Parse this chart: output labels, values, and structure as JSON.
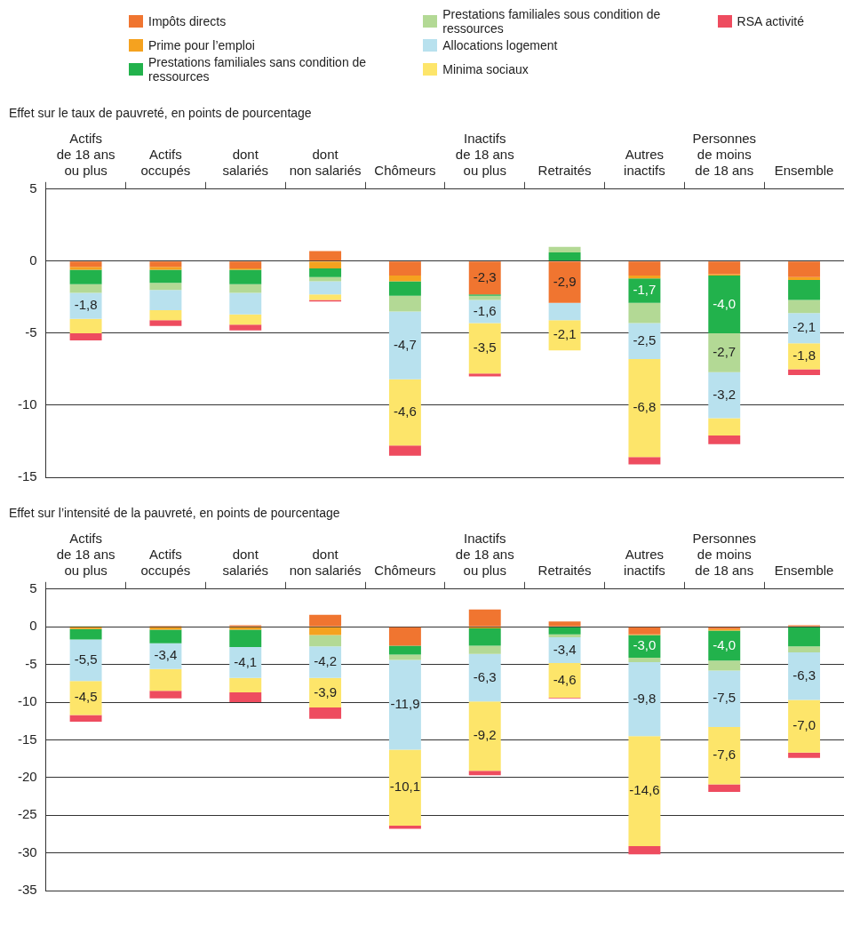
{
  "chart_data": [
    {
      "type": "bar",
      "title": "Effet sur le taux de pauvreté, en points de pourcentage",
      "stacked": true,
      "legend": "top",
      "grid": "y",
      "categories": [
        "Actifs\nde 18 ans\nou plus",
        "Actifs\noccupés",
        "dont\nsalariés",
        "dont\nnon salariés",
        "Chômeurs",
        "Inactifs\nde 18 ans\nou plus",
        "Retraités",
        "Autres\ninactifs",
        "Personnes\nde moins\nde 18 ans",
        "Ensemble"
      ],
      "ylim": [
        -15,
        5
      ],
      "yticks": [
        -15,
        -10,
        -5,
        0,
        5
      ],
      "series": [
        {
          "name": "Impôts directs",
          "color": "#f07530",
          "values": [
            -0.4,
            -0.4,
            -0.5,
            0.7,
            -1.0,
            -2.3,
            -2.9,
            -1.0,
            -0.9,
            -1.1
          ],
          "value_labels": [
            null,
            null,
            null,
            null,
            null,
            "-2,3",
            "-2,9",
            null,
            null,
            null
          ]
        },
        {
          "name": "Prime pour l’emploi",
          "color": "#f5a21f",
          "values": [
            -0.2,
            -0.2,
            -0.1,
            -0.5,
            -0.4,
            0,
            0,
            -0.2,
            -0.1,
            -0.2
          ]
        },
        {
          "name": "Prestations familiales sans condition de ressources",
          "color": "#22b24c",
          "values": [
            -1.0,
            -0.9,
            -1.0,
            -0.6,
            -1.0,
            -0.1,
            0.6,
            -1.7,
            -4.0,
            -1.4
          ],
          "value_labels": [
            null,
            null,
            null,
            null,
            null,
            null,
            null,
            "-1,7",
            "-4,0",
            null
          ]
        },
        {
          "name": "Prestations familiales sous condition de ressources",
          "color": "#b3d995",
          "values": [
            -0.6,
            -0.5,
            -0.6,
            -0.3,
            -1.1,
            -0.3,
            0.4,
            -1.4,
            -2.7,
            -0.9
          ],
          "value_labels": [
            null,
            null,
            null,
            null,
            null,
            null,
            null,
            null,
            "-2,7",
            null
          ]
        },
        {
          "name": "Allocations logement",
          "color": "#b8e1ee",
          "values": [
            -1.8,
            -1.4,
            -1.5,
            -0.9,
            -4.7,
            -1.6,
            -1.2,
            -2.5,
            -3.2,
            -2.1
          ],
          "value_labels": [
            "-1,8",
            null,
            null,
            null,
            "-4,7",
            "-1,6",
            null,
            "-2,5",
            "-3,2",
            "-2,1"
          ]
        },
        {
          "name": "Minima sociaux",
          "color": "#fde56a",
          "values": [
            -1.0,
            -0.7,
            -0.7,
            -0.4,
            -4.6,
            -3.5,
            -2.1,
            -6.8,
            -1.2,
            -1.8
          ],
          "value_labels": [
            null,
            null,
            null,
            null,
            "-4,6",
            "-3,5",
            "-2,1",
            "-6,8",
            null,
            "-1,8"
          ]
        },
        {
          "name": "RSA activité",
          "color": "#ee4c5f",
          "values": [
            -0.5,
            -0.4,
            -0.4,
            -0.1,
            -0.7,
            -0.2,
            0,
            -0.5,
            -0.6,
            -0.4
          ]
        }
      ]
    },
    {
      "type": "bar",
      "title": "Effet sur l’intensité de la pauvreté, en points de pourcentage",
      "stacked": true,
      "legend": false,
      "grid": "y",
      "categories": [
        "Actifs\nde 18 ans\nou plus",
        "Actifs\noccupés",
        "dont\nsalariés",
        "dont\nnon salariés",
        "Chômeurs",
        "Inactifs\nde 18 ans\nou plus",
        "Retraités",
        "Autres\ninactifs",
        "Personnes\nde moins\nde 18 ans",
        "Ensemble"
      ],
      "ylim": [
        -35,
        5
      ],
      "yticks": [
        -35,
        -30,
        -25,
        -20,
        -15,
        -10,
        -5,
        0,
        5
      ],
      "series": [
        {
          "color": "#f07530",
          "values": [
            null,
            0.1,
            0.2,
            1.6,
            -2.5,
            2.3,
            0.7,
            -1.0,
            -0.3,
            0.2
          ]
        },
        {
          "color": "#f5a21f",
          "values": [
            -0.3,
            -0.4,
            -0.4,
            -1.1,
            0,
            -0.2,
            0,
            -0.1,
            -0.2,
            0
          ]
        },
        {
          "color": "#22b24c",
          "values": [
            -1.4,
            -1.8,
            -2.3,
            null,
            -1.2,
            -2.3,
            -1.0,
            -3.0,
            -4.0,
            -2.6
          ],
          "value_labels": [
            null,
            null,
            null,
            null,
            null,
            null,
            null,
            "-3,0",
            "-4,0",
            null
          ]
        },
        {
          "color": "#b3d995",
          "values": [
            0.1,
            0,
            0,
            -1.5,
            -0.7,
            -1.1,
            -0.4,
            -0.6,
            -1.3,
            -0.8
          ]
        },
        {
          "color": "#b8e1ee",
          "values": [
            -5.5,
            -3.4,
            -4.1,
            -4.2,
            -11.9,
            -6.3,
            -3.4,
            -9.8,
            -7.5,
            -6.3
          ],
          "value_labels": [
            "-5,5",
            "-3,4",
            "-4,1",
            "-4,2",
            "-11,9",
            "-6,3",
            "-3,4",
            "-9,8",
            "-7,5",
            "-6,3"
          ]
        },
        {
          "color": "#fde56a",
          "values": [
            -4.5,
            -2.9,
            -1.9,
            -3.9,
            -10.1,
            -9.2,
            -4.6,
            -14.6,
            -7.6,
            -7.0
          ],
          "value_labels": [
            "-4,5",
            null,
            null,
            "-3,9",
            "-10,1",
            "-9,2",
            "-4,6",
            "-14,6",
            "-7,6",
            "-7,0"
          ]
        },
        {
          "color": "#ee4c5f",
          "values": [
            -0.9,
            -1.0,
            -1.3,
            -1.5,
            -0.4,
            -0.6,
            -0.1,
            -1.1,
            -1.0,
            -0.7
          ]
        }
      ]
    }
  ]
}
